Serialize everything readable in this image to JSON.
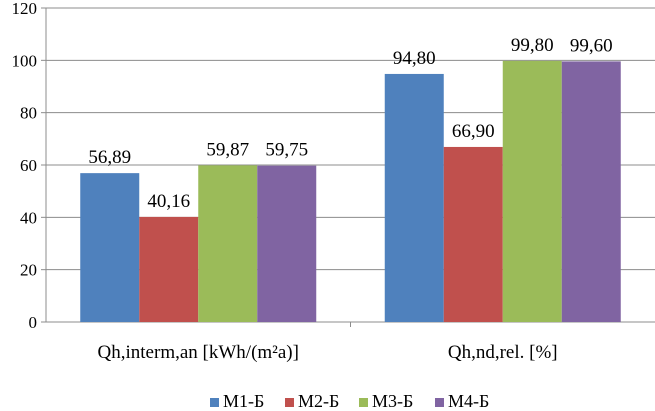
{
  "chart_data": {
    "type": "bar",
    "categories": [
      "Qh,interm,an [kWh/(m²a)]",
      "Qh,nd,rel. [%]"
    ],
    "series": [
      {
        "name": "M1-Б",
        "color": "#4F81BD",
        "values": [
          56.89,
          94.8
        ],
        "labels": [
          "56,89",
          "94,80"
        ]
      },
      {
        "name": "M2-Б",
        "color": "#C0504D",
        "values": [
          40.16,
          66.9
        ],
        "labels": [
          "40,16",
          "66,90"
        ]
      },
      {
        "name": "M3-Б",
        "color": "#9BBB59",
        "values": [
          59.87,
          99.8
        ],
        "labels": [
          "59,87",
          "99,80"
        ]
      },
      {
        "name": "M4-Б",
        "color": "#8064A2",
        "values": [
          59.75,
          99.6
        ],
        "labels": [
          "59,75",
          "99,60"
        ]
      }
    ],
    "y_ticks": [
      "0",
      "20",
      "40",
      "60",
      "80",
      "100",
      "120"
    ],
    "ylim": [
      0,
      120
    ],
    "grid": true,
    "legend_position": "bottom"
  }
}
